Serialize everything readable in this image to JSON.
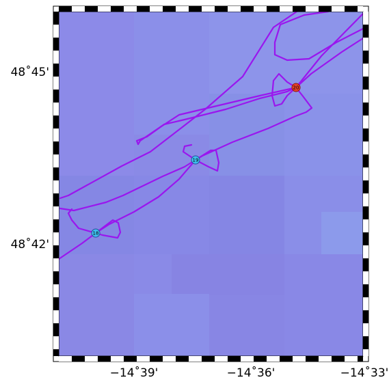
{
  "map": {
    "latitude_labels": [
      "48˚45'",
      "48˚42'"
    ],
    "longitude_labels": [
      "−14˚39'",
      "−14˚36'",
      "−14˚33'"
    ],
    "background_color": "#8a8ae6",
    "track_color": "#9a16ee",
    "waypoints": [
      {
        "label": "18",
        "color": "#3fc0f0"
      },
      {
        "label": "19",
        "color": "#3fc0f0"
      },
      {
        "label": "20",
        "color": "#e8402a"
      }
    ]
  }
}
